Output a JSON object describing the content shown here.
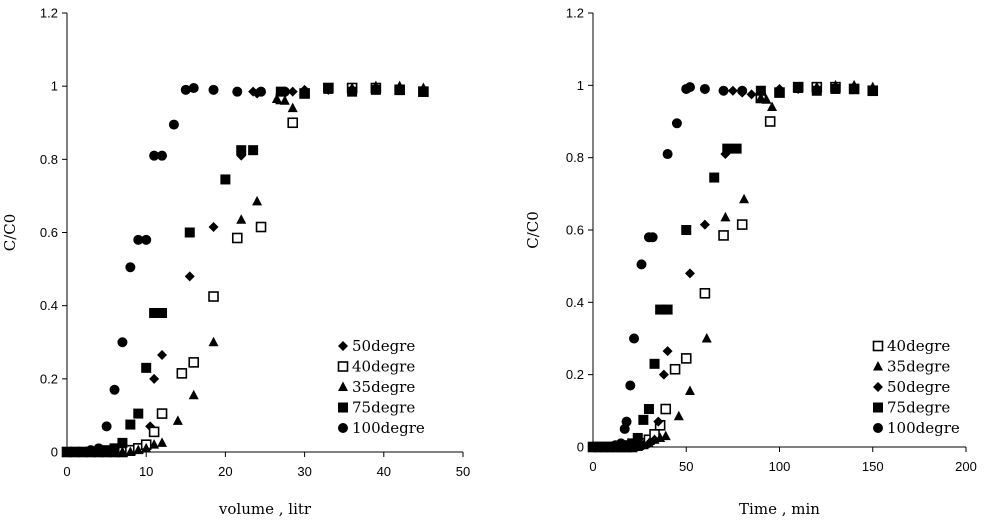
{
  "chart_data": [
    {
      "type": "scatter",
      "xlabel": "volume , litr",
      "ylabel": "C/C0",
      "xlim": [
        0,
        50
      ],
      "ylim": [
        0,
        1.2
      ],
      "xticks": [
        "0",
        "10",
        "20",
        "30",
        "40",
        "50"
      ],
      "yticks": [
        "0",
        "0.2",
        "0.4",
        "0.6",
        "0.8",
        "1",
        "1.2"
      ],
      "legend_position": "bottom-right",
      "series": [
        {
          "name": "50degre",
          "marker": "diamond",
          "x": [
            0,
            1,
            2,
            3,
            4,
            5,
            6,
            7,
            8,
            9,
            10,
            10.5,
            11,
            12,
            15.5,
            18.5,
            22,
            23.5,
            24,
            27,
            28.5,
            30,
            33,
            36,
            39,
            42,
            45
          ],
          "y": [
            0,
            0,
            0,
            0,
            0,
            0,
            0,
            0.005,
            0.005,
            0.01,
            0.02,
            0.07,
            0.2,
            0.265,
            0.48,
            0.615,
            0.81,
            0.985,
            0.98,
            0.975,
            0.985,
            0.99,
            0.99,
            0.99,
            0.995,
            0.99,
            0.99
          ]
        },
        {
          "name": "40degre",
          "marker": "square-open",
          "x": [
            0,
            1,
            2,
            3,
            4,
            5,
            6,
            7,
            8,
            9,
            10,
            11,
            12,
            14.5,
            16,
            18.5,
            21.5,
            24.5,
            27,
            28.5,
            30,
            33,
            36,
            39,
            42,
            45
          ],
          "y": [
            0,
            0,
            0,
            0,
            0,
            0,
            0,
            0,
            0.005,
            0.01,
            0.02,
            0.055,
            0.105,
            0.215,
            0.245,
            0.425,
            0.585,
            0.615,
            0.965,
            0.9,
            0.98,
            0.995,
            0.995,
            0.995,
            0.99,
            0.985
          ]
        },
        {
          "name": "35degre",
          "marker": "triangle",
          "x": [
            0,
            1,
            2,
            3,
            4,
            5,
            6,
            7,
            8,
            9,
            10,
            11,
            12,
            14,
            16,
            18.5,
            22,
            24,
            26.5,
            27.5,
            28.5,
            30,
            33,
            36,
            39,
            42,
            45
          ],
          "y": [
            0,
            0,
            0,
            0,
            0,
            0,
            0,
            0,
            0,
            0.005,
            0.01,
            0.02,
            0.025,
            0.085,
            0.155,
            0.3,
            0.635,
            0.685,
            0.965,
            0.96,
            0.94,
            0.98,
            0.99,
            0.995,
            1.0,
            1.0,
            0.995
          ]
        },
        {
          "name": "75degre",
          "marker": "square-filled",
          "x": [
            0,
            1,
            2,
            3,
            4,
            5,
            6,
            7,
            8,
            9,
            10,
            11,
            12,
            15.5,
            20,
            22,
            23.5,
            27,
            30,
            33,
            36,
            39,
            42,
            45
          ],
          "y": [
            0,
            0,
            0,
            0,
            0,
            0.005,
            0.01,
            0.025,
            0.075,
            0.105,
            0.23,
            0.38,
            0.38,
            0.6,
            0.745,
            0.825,
            0.825,
            0.985,
            0.98,
            0.995,
            0.985,
            0.99,
            0.99,
            0.985
          ]
        },
        {
          "name": "100degre",
          "marker": "circle",
          "x": [
            0,
            1,
            2,
            3,
            4,
            5,
            6,
            7,
            8,
            9,
            10,
            11,
            12,
            13.5,
            15,
            16,
            18.5,
            21.5,
            24.5,
            27.5
          ],
          "y": [
            0,
            0,
            0,
            0.005,
            0.01,
            0.07,
            0.17,
            0.3,
            0.505,
            0.58,
            0.58,
            0.81,
            0.81,
            0.895,
            0.99,
            0.995,
            0.99,
            0.985,
            0.985,
            0.985
          ]
        }
      ]
    },
    {
      "type": "scatter",
      "xlabel": "Time , min",
      "ylabel": "C/C0",
      "xlim": [
        0,
        200
      ],
      "ylim": [
        0,
        1.2
      ],
      "xticks": [
        "0",
        "50",
        "100",
        "150",
        "200"
      ],
      "yticks": [
        "0",
        "0.2",
        "0.4",
        "0.6",
        "0.8",
        "1",
        "1.2"
      ],
      "legend_position": "bottom-right",
      "series": [
        {
          "name": "40degre",
          "marker": "square-open",
          "x": [
            0,
            3,
            6,
            9,
            12,
            15,
            18,
            21,
            24,
            27,
            30,
            33,
            36,
            39,
            44,
            50,
            60,
            70,
            80,
            90,
            95,
            100,
            110,
            120,
            130,
            140,
            150
          ],
          "y": [
            0,
            0,
            0,
            0,
            0,
            0,
            0,
            0,
            0.005,
            0.01,
            0.02,
            0.035,
            0.06,
            0.105,
            0.215,
            0.245,
            0.425,
            0.585,
            0.615,
            0.965,
            0.9,
            0.98,
            0.995,
            0.995,
            0.995,
            0.99,
            0.985
          ]
        },
        {
          "name": "35degre",
          "marker": "triangle",
          "x": [
            0,
            3,
            6,
            9,
            12,
            15,
            18,
            21,
            24,
            27,
            30,
            33,
            36,
            39,
            46,
            52,
            61,
            71,
            81,
            90,
            93,
            96,
            100,
            110,
            120,
            130,
            140,
            150
          ],
          "y": [
            0,
            0,
            0,
            0,
            0,
            0,
            0,
            0,
            0,
            0.005,
            0.01,
            0.02,
            0.025,
            0.03,
            0.085,
            0.155,
            0.3,
            0.635,
            0.685,
            0.965,
            0.96,
            0.94,
            0.98,
            0.99,
            0.995,
            1.0,
            1.0,
            0.995
          ]
        },
        {
          "name": "50degre",
          "marker": "diamond",
          "x": [
            0,
            3,
            6,
            9,
            12,
            15,
            18,
            21,
            24,
            27,
            30,
            33,
            35,
            38,
            40,
            52,
            60,
            71,
            75,
            80,
            85,
            90,
            100,
            110,
            120,
            130,
            140,
            150
          ],
          "y": [
            0,
            0,
            0,
            0,
            0,
            0,
            0,
            0,
            0.005,
            0.005,
            0.01,
            0.02,
            0.07,
            0.2,
            0.265,
            0.48,
            0.615,
            0.81,
            0.985,
            0.98,
            0.975,
            0.985,
            0.99,
            0.99,
            0.99,
            0.995,
            0.99,
            0.99
          ]
        },
        {
          "name": "75degre",
          "marker": "square-filled",
          "x": [
            0,
            3,
            6,
            9,
            12,
            15,
            18,
            21,
            24,
            27,
            30,
            33,
            36,
            40,
            50,
            65,
            72,
            77,
            90,
            100,
            110,
            120,
            130,
            140,
            150
          ],
          "y": [
            0,
            0,
            0,
            0,
            0,
            0,
            0.005,
            0.01,
            0.025,
            0.075,
            0.105,
            0.23,
            0.38,
            0.38,
            0.6,
            0.745,
            0.825,
            0.825,
            0.985,
            0.98,
            0.995,
            0.985,
            0.99,
            0.99,
            0.985
          ]
        },
        {
          "name": "100degre",
          "marker": "circle",
          "x": [
            0,
            3,
            6,
            9,
            12,
            15,
            17,
            18,
            20,
            22,
            26,
            30,
            32,
            40,
            45,
            50,
            52,
            60,
            70,
            80
          ],
          "y": [
            0,
            0,
            0,
            0,
            0.005,
            0.01,
            0.05,
            0.07,
            0.17,
            0.3,
            0.505,
            0.58,
            0.58,
            0.81,
            0.895,
            0.99,
            0.995,
            0.99,
            0.985,
            0.985
          ]
        }
      ]
    }
  ]
}
